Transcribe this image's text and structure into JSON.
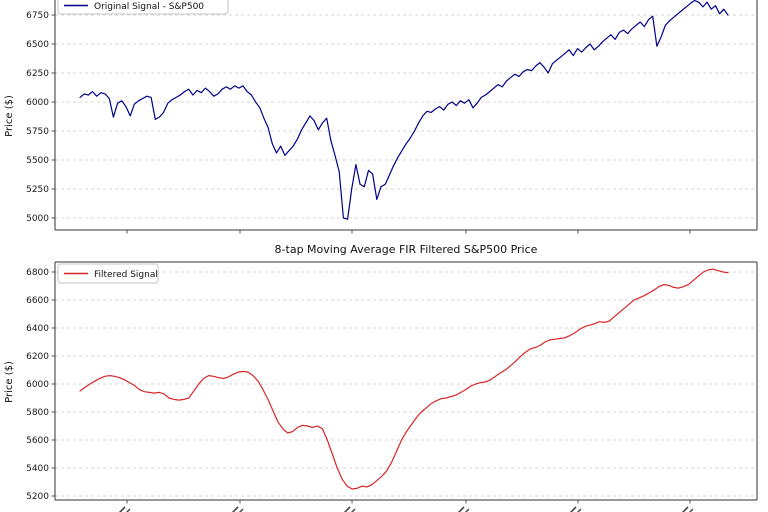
{
  "figure": {
    "background": "#ffffff",
    "grid_style": "dashed",
    "grid_color": "#c8c8c8"
  },
  "chart_data": [
    {
      "type": "line",
      "title": "",
      "xlabel": "",
      "ylabel": "Price ($)",
      "legend": "Original Signal - S&P500",
      "legend_position": "upper left",
      "color": "#00008b",
      "grid": true,
      "ylim": [
        4897,
        6879
      ],
      "yticks": [
        5000,
        5250,
        5500,
        5750,
        6000,
        6250,
        6500,
        6750
      ],
      "values": [
        6040,
        6070,
        6060,
        6090,
        6050,
        6080,
        6070,
        6030,
        5870,
        5990,
        6010,
        5960,
        5880,
        5980,
        6010,
        6030,
        6050,
        6040,
        5850,
        5870,
        5910,
        5990,
        6020,
        6040,
        6060,
        6090,
        6110,
        6060,
        6100,
        6080,
        6120,
        6090,
        6050,
        6070,
        6110,
        6130,
        6110,
        6140,
        6120,
        6140,
        6090,
        6060,
        6000,
        5950,
        5860,
        5780,
        5640,
        5560,
        5620,
        5540,
        5580,
        5620,
        5680,
        5760,
        5820,
        5880,
        5840,
        5760,
        5820,
        5860,
        5670,
        5540,
        5400,
        5000,
        4990,
        5250,
        5460,
        5290,
        5270,
        5410,
        5380,
        5160,
        5270,
        5290,
        5370,
        5450,
        5520,
        5580,
        5640,
        5690,
        5750,
        5820,
        5880,
        5920,
        5910,
        5940,
        5960,
        5930,
        5980,
        6000,
        5970,
        6010,
        5990,
        6020,
        5950,
        5990,
        6040,
        6060,
        6090,
        6120,
        6150,
        6130,
        6180,
        6210,
        6240,
        6220,
        6260,
        6280,
        6270,
        6310,
        6340,
        6300,
        6250,
        6330,
        6360,
        6390,
        6420,
        6450,
        6400,
        6460,
        6430,
        6470,
        6500,
        6450,
        6480,
        6520,
        6550,
        6580,
        6540,
        6600,
        6620,
        6590,
        6630,
        6660,
        6690,
        6650,
        6710,
        6740,
        6480,
        6560,
        6660,
        6700,
        6730,
        6760,
        6790,
        6820,
        6850,
        6875,
        6860,
        6820,
        6860,
        6800,
        6830,
        6760,
        6800,
        6750
      ]
    },
    {
      "type": "line",
      "title": "8-tap Moving Average FIR Filtered S&P500 Price",
      "xlabel": "",
      "ylabel": "Price ($)",
      "legend": "Filtered Signal",
      "legend_position": "upper left",
      "color": "#d62728",
      "grid": true,
      "ylim": [
        5171,
        6871
      ],
      "yticks": [
        5200,
        5400,
        5600,
        5800,
        6000,
        6200,
        6400,
        6600,
        6800
      ],
      "values": [
        5950,
        5975,
        6000,
        6020,
        6040,
        6055,
        6060,
        6055,
        6045,
        6030,
        6010,
        5990,
        5960,
        5945,
        5940,
        5935,
        5940,
        5930,
        5900,
        5890,
        5885,
        5890,
        5900,
        5950,
        6000,
        6040,
        6060,
        6055,
        6045,
        6040,
        6050,
        6070,
        6085,
        6090,
        6085,
        6060,
        6020,
        5960,
        5890,
        5810,
        5730,
        5680,
        5650,
        5660,
        5690,
        5705,
        5700,
        5690,
        5700,
        5680,
        5600,
        5500,
        5400,
        5320,
        5270,
        5250,
        5255,
        5270,
        5265,
        5280,
        5310,
        5340,
        5380,
        5440,
        5520,
        5600,
        5660,
        5710,
        5760,
        5800,
        5830,
        5860,
        5880,
        5895,
        5900,
        5910,
        5920,
        5940,
        5960,
        5985,
        6000,
        6010,
        6015,
        6030,
        6055,
        6080,
        6100,
        6130,
        6160,
        6195,
        6225,
        6250,
        6260,
        6275,
        6300,
        6315,
        6320,
        6325,
        6330,
        6345,
        6365,
        6390,
        6410,
        6420,
        6430,
        6445,
        6440,
        6450,
        6480,
        6510,
        6540,
        6570,
        6600,
        6615,
        6630,
        6650,
        6670,
        6695,
        6710,
        6705,
        6690,
        6685,
        6695,
        6710,
        6740,
        6770,
        6800,
        6815,
        6820,
        6810,
        6800,
        6795
      ]
    }
  ]
}
